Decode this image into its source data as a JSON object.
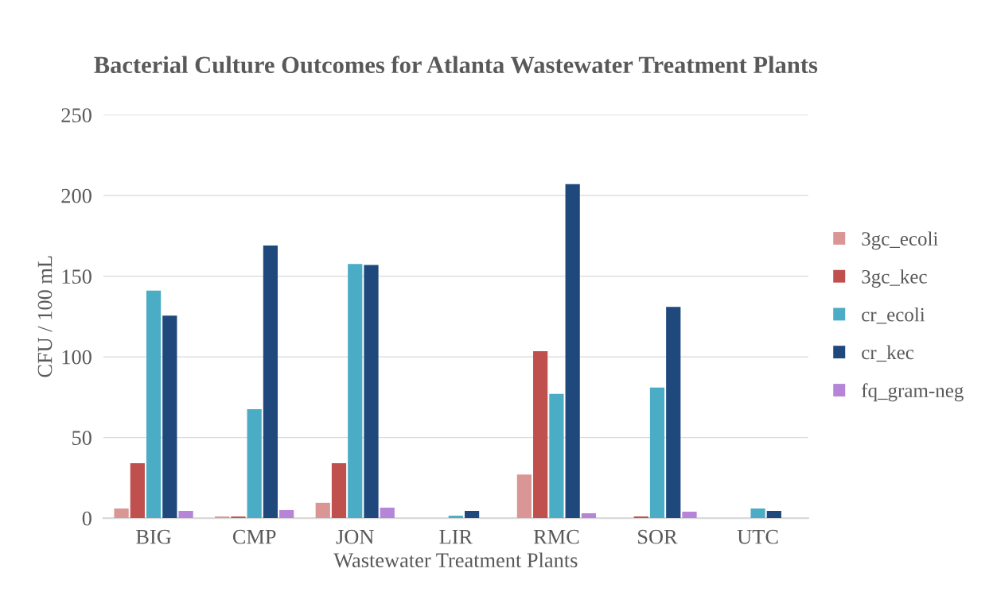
{
  "chart_data": {
    "type": "bar",
    "title": "Bacterial Culture Outcomes for Atlanta Wastewater Treatment Plants",
    "xlabel": "Wastewater Treatment Plants",
    "ylabel": "CFU / 100 mL",
    "categories": [
      "BIG",
      "CMP",
      "JON",
      "LIR",
      "RMC",
      "SOR",
      "UTC"
    ],
    "series": [
      {
        "name": "3gc_ecoli",
        "color": "#da9694",
        "values": [
          6,
          1,
          9.5,
          0,
          27,
          0,
          0
        ]
      },
      {
        "name": "3gc_kec",
        "color": "#c0504d",
        "values": [
          34,
          1,
          34,
          0,
          103.5,
          1,
          0
        ]
      },
      {
        "name": "cr_ecoli",
        "color": "#4bacc6",
        "values": [
          141,
          67.5,
          157.5,
          1.5,
          77,
          81,
          6
        ]
      },
      {
        "name": "cr_kec",
        "color": "#1f497d",
        "values": [
          125.5,
          169,
          157,
          4.5,
          207,
          131,
          4.5
        ]
      },
      {
        "name": "fq_gram-neg",
        "color": "#b685d8",
        "values": [
          4.5,
          5,
          6.5,
          0,
          3,
          4,
          0
        ]
      }
    ],
    "ylim": [
      0,
      250
    ],
    "yticks": [
      0,
      50,
      100,
      150,
      200,
      250
    ],
    "grid": "y",
    "legend": "right"
  }
}
